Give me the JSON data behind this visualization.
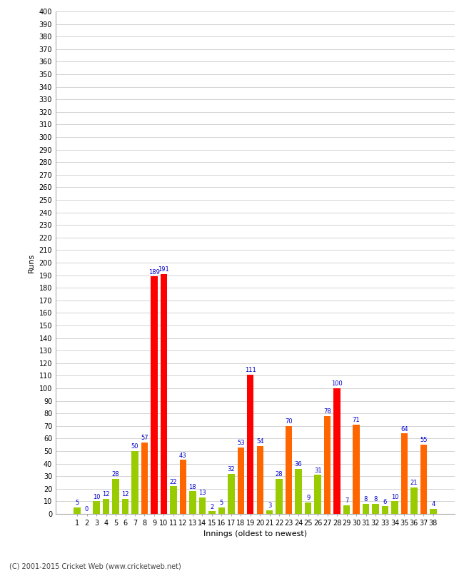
{
  "xlabel": "Innings (oldest to newest)",
  "ylabel": "Runs",
  "footer": "(C) 2001-2015 Cricket Web (www.cricketweb.net)",
  "ylim": [
    0,
    400
  ],
  "innings_labels": [
    "1",
    "2",
    "3",
    "4",
    "5",
    "6",
    "7",
    "8",
    "9",
    "10",
    "11",
    "12",
    "13",
    "14",
    "15",
    "16",
    "17",
    "18",
    "19",
    "20",
    "21",
    "22",
    "23",
    "24",
    "25",
    "26",
    "27",
    "28",
    "29",
    "30",
    "31",
    "32",
    "33",
    "34",
    "35",
    "36",
    "37",
    "38"
  ],
  "values": [
    5,
    0,
    10,
    12,
    28,
    12,
    50,
    57,
    189,
    191,
    22,
    43,
    18,
    13,
    2,
    5,
    32,
    53,
    111,
    54,
    3,
    28,
    70,
    36,
    9,
    31,
    78,
    100,
    7,
    71,
    8,
    8,
    6,
    10,
    64,
    21,
    55,
    4
  ],
  "colors": [
    "#99cc00",
    "#99cc00",
    "#99cc00",
    "#99cc00",
    "#99cc00",
    "#99cc00",
    "#99cc00",
    "#ff6600",
    "#ff0000",
    "#ff0000",
    "#99cc00",
    "#ff6600",
    "#99cc00",
    "#99cc00",
    "#99cc00",
    "#99cc00",
    "#99cc00",
    "#ff6600",
    "#ff0000",
    "#ff6600",
    "#99cc00",
    "#99cc00",
    "#ff6600",
    "#99cc00",
    "#99cc00",
    "#99cc00",
    "#ff6600",
    "#ff0000",
    "#99cc00",
    "#ff6600",
    "#99cc00",
    "#99cc00",
    "#99cc00",
    "#99cc00",
    "#ff6600",
    "#99cc00",
    "#ff6600",
    "#99cc00"
  ],
  "background_color": "#ffffff",
  "grid_color": "#cccccc",
  "label_color": "#0000cc",
  "bar_width": 0.7
}
